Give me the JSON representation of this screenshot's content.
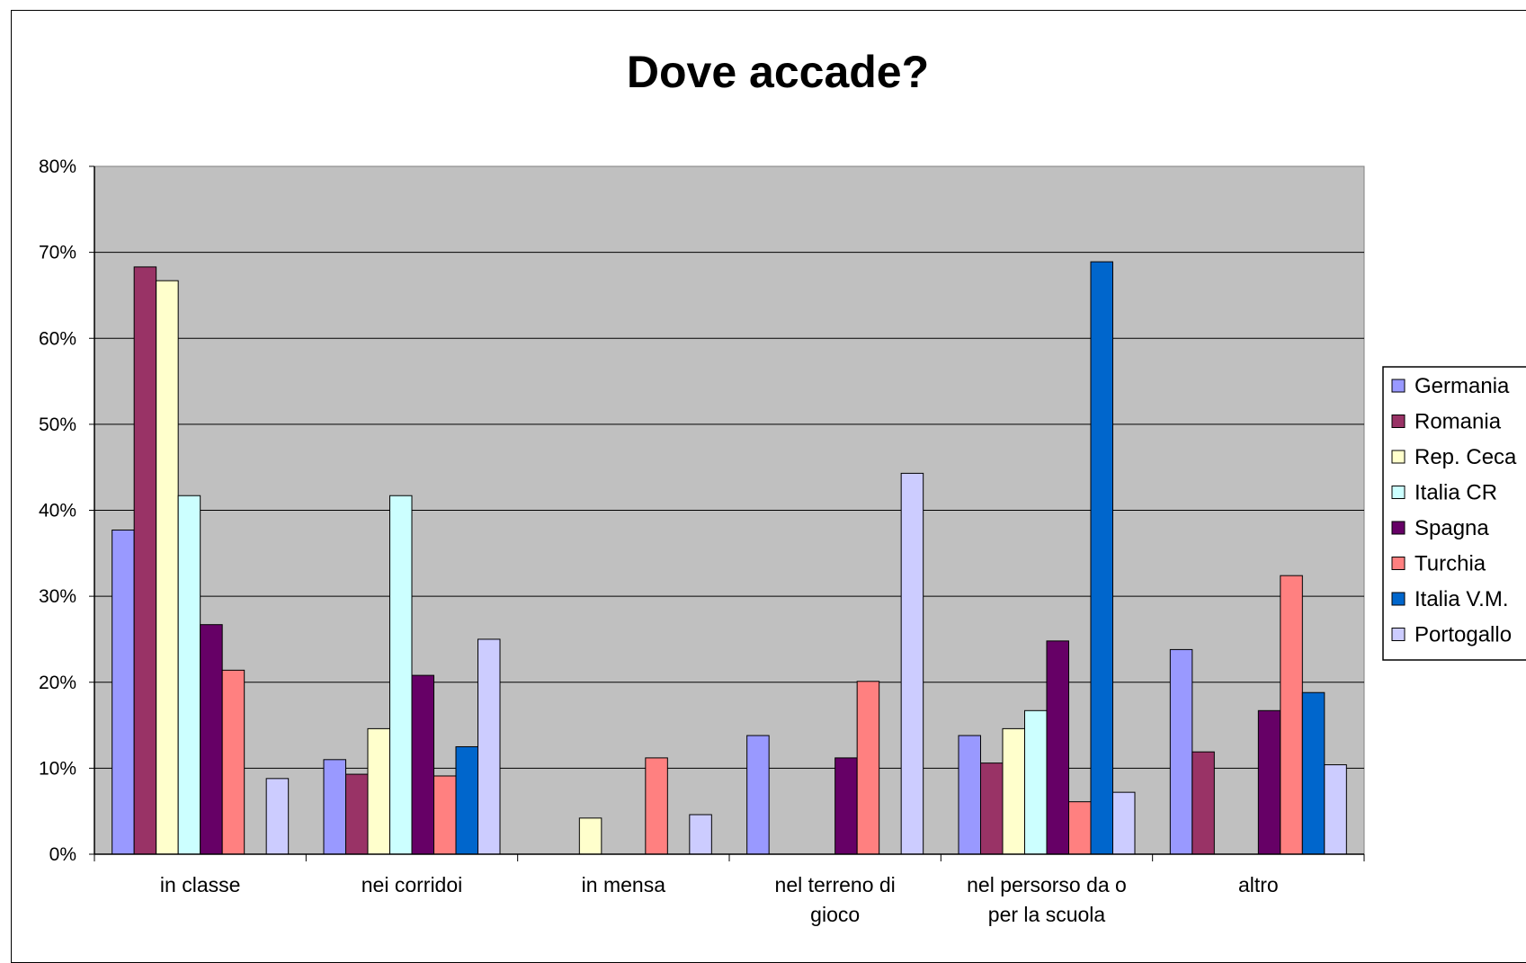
{
  "chart_data": {
    "type": "bar",
    "title": "Dove accade?",
    "xlabel": "",
    "ylabel": "",
    "ylim": [
      0,
      80
    ],
    "yticks": [
      "0%",
      "10%",
      "20%",
      "30%",
      "40%",
      "50%",
      "60%",
      "70%",
      "80%"
    ],
    "grid": true,
    "legend_position": "right",
    "plot_background": "#c0c0c0",
    "categories": [
      [
        "in classe"
      ],
      [
        "nei corridoi"
      ],
      [
        "in mensa"
      ],
      [
        "nel terreno di",
        "gioco"
      ],
      [
        "nel persorso da o",
        "per la scuola"
      ],
      [
        "altro"
      ]
    ],
    "series": [
      {
        "name": "Germania",
        "color": "#9999ff",
        "values": [
          37.7,
          11,
          null,
          13.8,
          13.8,
          23.8
        ]
      },
      {
        "name": "Romania",
        "color": "#993366",
        "values": [
          68.3,
          9.3,
          null,
          null,
          10.6,
          11.9
        ]
      },
      {
        "name": "Rep. Ceca",
        "color": "#ffffcc",
        "values": [
          66.7,
          14.6,
          4.2,
          null,
          14.6,
          null
        ]
      },
      {
        "name": "Italia CR",
        "color": "#ccffff",
        "values": [
          41.7,
          41.7,
          null,
          null,
          16.7,
          null
        ]
      },
      {
        "name": "Spagna",
        "color": "#660066",
        "values": [
          26.7,
          20.8,
          null,
          11.2,
          24.8,
          16.7
        ]
      },
      {
        "name": "Turchia",
        "color": "#ff8080",
        "values": [
          21.4,
          9.1,
          11.2,
          20.1,
          6.1,
          32.4
        ]
      },
      {
        "name": "Italia V.M.",
        "color": "#0066cc",
        "values": [
          null,
          12.5,
          null,
          null,
          68.9,
          18.8
        ]
      },
      {
        "name": "Portogallo",
        "color": "#ccccff",
        "values": [
          8.8,
          25,
          4.6,
          44.3,
          7.2,
          10.4
        ]
      }
    ]
  }
}
